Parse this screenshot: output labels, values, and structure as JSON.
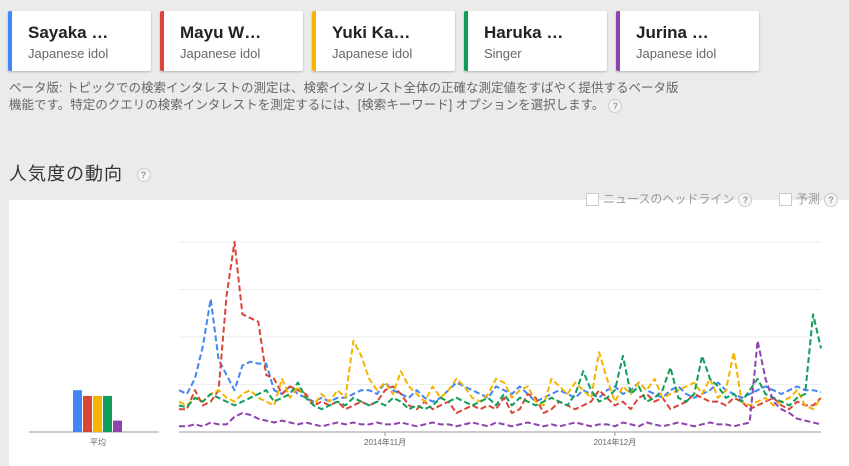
{
  "topics": [
    {
      "name": "Sayaka …",
      "type": "Japanese idol",
      "color": "#4285f4"
    },
    {
      "name": "Mayu W…",
      "type": "Japanese idol",
      "color": "#db4437"
    },
    {
      "name": "Yuki Ka…",
      "type": "Japanese idol",
      "color": "#f4b400"
    },
    {
      "name": "Haruka …",
      "type": "Singer",
      "color": "#0f9d58"
    },
    {
      "name": "Jurina …",
      "type": "Japanese idol",
      "color": "#8e44ad"
    }
  ],
  "notice": {
    "line1": "ベータ版: トピックでの検索インタレストの測定は、検索インタレスト全体の正確な測定値をすばやく提供するベータ版",
    "line2": "機能です。特定のクエリの検索インタレストを測定するには、[検索キーワード] オプションを選択します。"
  },
  "section": {
    "title": "人気度の動向"
  },
  "options": {
    "news": "ニュースのヘッドライン",
    "forecast": "予測"
  },
  "chart_data": {
    "type": "line",
    "x_ticks": [
      {
        "label": "2014年11月",
        "index": 26
      },
      {
        "label": "2014年12月",
        "index": 55
      }
    ],
    "average_label": "平均",
    "ylim": [
      0,
      100
    ],
    "grid": true,
    "average": [
      {
        "name": "Sayaka …",
        "value": 22
      },
      {
        "name": "Mayu W…",
        "value": 19
      },
      {
        "name": "Yuki Ka…",
        "value": 19
      },
      {
        "name": "Haruka …",
        "value": 19
      },
      {
        "name": "Jurina …",
        "value": 6
      }
    ],
    "series": [
      {
        "name": "Sayaka …",
        "values": [
          22,
          20,
          28,
          45,
          70,
          38,
          30,
          22,
          35,
          37,
          36,
          36,
          22,
          20,
          24,
          20,
          18,
          16,
          18,
          16,
          18,
          18,
          20,
          22,
          22,
          20,
          26,
          22,
          20,
          18,
          22,
          18,
          16,
          18,
          22,
          26,
          24,
          22,
          20,
          18,
          24,
          22,
          20,
          24,
          20,
          16,
          18,
          20,
          22,
          20,
          18,
          22,
          20,
          18,
          22,
          24,
          20,
          22,
          26,
          22,
          20,
          18,
          22,
          24,
          20,
          18,
          20,
          22,
          26,
          22,
          20,
          18,
          20,
          22,
          24,
          22,
          20,
          22,
          24,
          22,
          22,
          21
        ]
      },
      {
        "name": "Mayu W…",
        "values": [
          12,
          12,
          22,
          14,
          16,
          22,
          72,
          100,
          62,
          60,
          58,
          30,
          28,
          20,
          24,
          22,
          20,
          14,
          16,
          14,
          16,
          12,
          14,
          16,
          14,
          16,
          22,
          24,
          20,
          14,
          12,
          16,
          12,
          14,
          16,
          10,
          12,
          14,
          12,
          14,
          12,
          18,
          10,
          12,
          20,
          18,
          10,
          12,
          16,
          14,
          12,
          14,
          16,
          22,
          18,
          14,
          16,
          12,
          18,
          20,
          16,
          18,
          12,
          14,
          16,
          20,
          18,
          16,
          16,
          14,
          18,
          16,
          12,
          14,
          16,
          18,
          14,
          12,
          16,
          14,
          14,
          18
        ]
      },
      {
        "name": "Yuki Ka…",
        "values": [
          16,
          14,
          18,
          16,
          20,
          22,
          18,
          16,
          20,
          22,
          18,
          16,
          14,
          28,
          18,
          24,
          18,
          14,
          20,
          16,
          22,
          18,
          48,
          40,
          28,
          22,
          26,
          20,
          32,
          24,
          20,
          16,
          24,
          18,
          22,
          28,
          24,
          18,
          16,
          20,
          28,
          26,
          18,
          22,
          24,
          16,
          14,
          28,
          24,
          20,
          26,
          22,
          18,
          42,
          28,
          16,
          24,
          20,
          26,
          22,
          28,
          18,
          20,
          22,
          24,
          26,
          20,
          28,
          18,
          22,
          42,
          16,
          14,
          16,
          18,
          14,
          16,
          18,
          22,
          14,
          12,
          18
        ]
      },
      {
        "name": "Haruka …",
        "values": [
          14,
          13,
          18,
          16,
          20,
          18,
          16,
          14,
          16,
          18,
          20,
          22,
          16,
          18,
          20,
          26,
          18,
          14,
          12,
          14,
          16,
          14,
          18,
          16,
          14,
          16,
          14,
          18,
          16,
          12,
          14,
          12,
          14,
          18,
          16,
          18,
          16,
          14,
          16,
          18,
          14,
          20,
          14,
          18,
          16,
          14,
          16,
          18,
          16,
          14,
          20,
          32,
          22,
          16,
          18,
          22,
          40,
          20,
          24,
          16,
          18,
          22,
          34,
          18,
          16,
          20,
          40,
          28,
          24,
          18,
          20,
          16,
          22,
          28,
          20,
          18,
          16,
          14,
          18,
          20,
          62,
          44
        ]
      },
      {
        "name": "Jurina …",
        "values": [
          3,
          3,
          4,
          3,
          5,
          4,
          4,
          8,
          10,
          9,
          7,
          6,
          5,
          6,
          5,
          4,
          5,
          4,
          3,
          4,
          5,
          4,
          5,
          4,
          4,
          5,
          4,
          4,
          5,
          4,
          3,
          4,
          5,
          4,
          4,
          3,
          4,
          5,
          4,
          3,
          5,
          4,
          3,
          4,
          5,
          4,
          3,
          4,
          3,
          4,
          5,
          4,
          3,
          4,
          4,
          3,
          5,
          4,
          3,
          5,
          4,
          3,
          4,
          5,
          4,
          3,
          4,
          5,
          4,
          4,
          3,
          4,
          5,
          48,
          28,
          16,
          12,
          10,
          7,
          6,
          5,
          4
        ]
      }
    ]
  }
}
